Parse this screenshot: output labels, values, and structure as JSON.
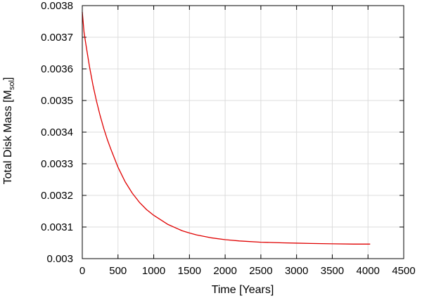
{
  "chart_data": {
    "type": "line",
    "title": "",
    "xlabel": "Time [Years]",
    "ylabel_prefix": "Total Disk Mass [M",
    "ylabel_sub": "sol",
    "ylabel_suffix": "]",
    "xlim": [
      0,
      4500
    ],
    "ylim": [
      0.003,
      0.0038
    ],
    "x_ticks": [
      0,
      500,
      1000,
      1500,
      2000,
      2500,
      3000,
      3500,
      4000,
      4500
    ],
    "y_ticks": [
      0.003,
      0.0031,
      0.0032,
      0.0033,
      0.0034,
      0.0035,
      0.0036,
      0.0037,
      0.0038
    ],
    "y_tick_labels": [
      "0.003",
      "0.0031",
      "0.0032",
      "0.0033",
      "0.0034",
      "0.0035",
      "0.0036",
      "0.0037",
      "0.0038"
    ],
    "grid": true,
    "series": [
      {
        "color": "#e00000",
        "x": [
          0,
          25,
          50,
          100,
          150,
          200,
          250,
          300,
          350,
          400,
          500,
          600,
          700,
          800,
          900,
          1000,
          1200,
          1400,
          1500,
          1600,
          1800,
          2000,
          2200,
          2500,
          2800,
          3000,
          3200,
          3500,
          3800,
          4000,
          4030
        ],
        "y": [
          0.00378,
          0.003715,
          0.003678,
          0.003608,
          0.003548,
          0.003497,
          0.003452,
          0.003412,
          0.003377,
          0.003346,
          0.003289,
          0.003243,
          0.003207,
          0.003178,
          0.003155,
          0.003137,
          0.003108,
          0.003088,
          0.003081,
          0.003075,
          0.003066,
          0.00306,
          0.003056,
          0.003052,
          0.00305,
          0.003049,
          0.003048,
          0.003047,
          0.003046,
          0.003046,
          0.003046
        ]
      }
    ]
  }
}
